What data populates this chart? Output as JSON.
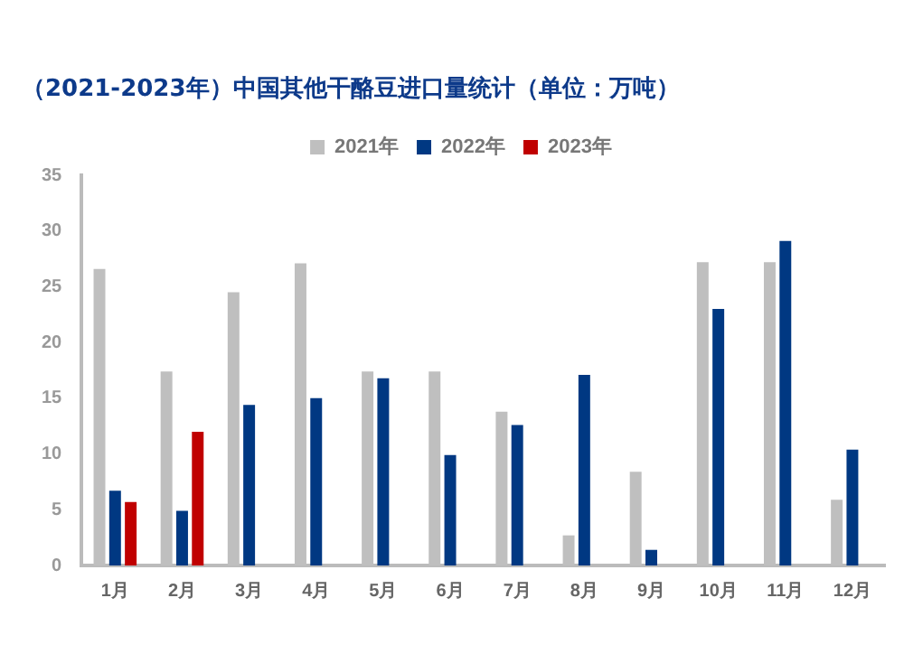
{
  "chart_data": {
    "type": "bar",
    "title": "（2021-2023年）中国其他干酪豆进口量统计（单位：万吨）",
    "categories": [
      "1月",
      "2月",
      "3月",
      "4月",
      "5月",
      "6月",
      "7月",
      "8月",
      "9月",
      "10月",
      "11月",
      "12月"
    ],
    "series": [
      {
        "name": "2021年",
        "color": "#bfbfbf",
        "values": [
          26.6,
          17.4,
          24.5,
          27.1,
          17.4,
          17.4,
          13.8,
          2.7,
          8.4,
          27.2,
          27.2,
          5.9
        ]
      },
      {
        "name": "2022年",
        "color": "#003882",
        "values": [
          6.7,
          4.9,
          14.4,
          15.0,
          16.8,
          9.9,
          12.6,
          17.1,
          1.4,
          23.0,
          29.1,
          10.4
        ]
      },
      {
        "name": "2023年",
        "color": "#c00000",
        "values": [
          5.7,
          12.0,
          null,
          null,
          null,
          null,
          null,
          null,
          null,
          null,
          null,
          null
        ]
      }
    ],
    "ylim": [
      0,
      35
    ],
    "yticks": [
      0,
      5,
      10,
      15,
      20,
      25,
      30,
      35
    ],
    "grid": false,
    "legend": "top"
  }
}
